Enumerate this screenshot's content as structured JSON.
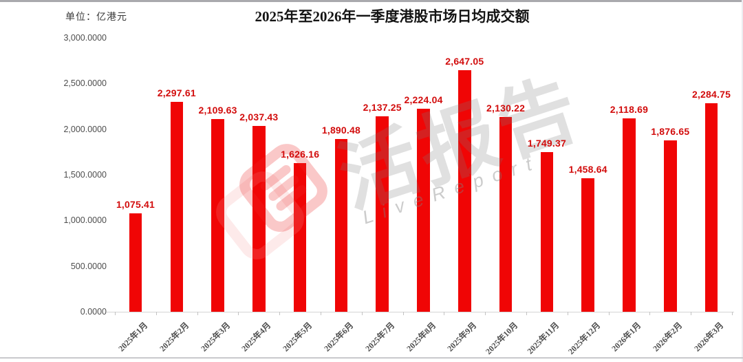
{
  "page": {
    "title": "2025年至2026年一季度港股市场日均成交额",
    "unit_label": "单位：亿港元"
  },
  "watermark": {
    "logo": "livereport-logo",
    "text_cn": "活报告",
    "text_en": "LiveReport"
  },
  "chart_data": {
    "type": "bar",
    "title": "2025年至2026年一季度港股市场日均成交额",
    "unit": "亿港元",
    "categories": [
      "2025年1月",
      "2025年2月",
      "2025年3月",
      "2025年4月",
      "2025年5月",
      "2025年6月",
      "2025年7月",
      "2025年8月",
      "2025年9月",
      "2025年10月",
      "2025年11月",
      "2025年12月",
      "2026年1月",
      "2026年2月",
      "2026年3月"
    ],
    "values": [
      1075.41,
      2297.61,
      2109.63,
      2037.43,
      1626.16,
      1890.48,
      2137.25,
      2224.04,
      2647.05,
      2130.22,
      1749.37,
      1458.64,
      2118.69,
      1876.65,
      2284.75
    ],
    "value_labels": [
      "1,075.41",
      "2,297.61",
      "2,109.63",
      "2,037.43",
      "1,626.16",
      "1,890.48",
      "2,137.25",
      "2,224.04",
      "2,647.05",
      "2,130.22",
      "1,749.37",
      "1,458.64",
      "2,118.69",
      "1,876.65",
      "2,284.75"
    ],
    "y_tick_values": [
      0,
      500,
      1000,
      1500,
      2000,
      2500,
      3000
    ],
    "y_tick_labels": [
      "0.0000",
      "500.0000",
      "1,000.0000",
      "1,500.0000",
      "2,000.0000",
      "2,500.0000",
      "3,000.0000"
    ],
    "ylim": [
      0,
      3000
    ],
    "grid": false,
    "legend": "none",
    "bar_color": "#f00505",
    "value_label_color": "#d20c0c",
    "axis_text_color": "#4d4d4d"
  }
}
